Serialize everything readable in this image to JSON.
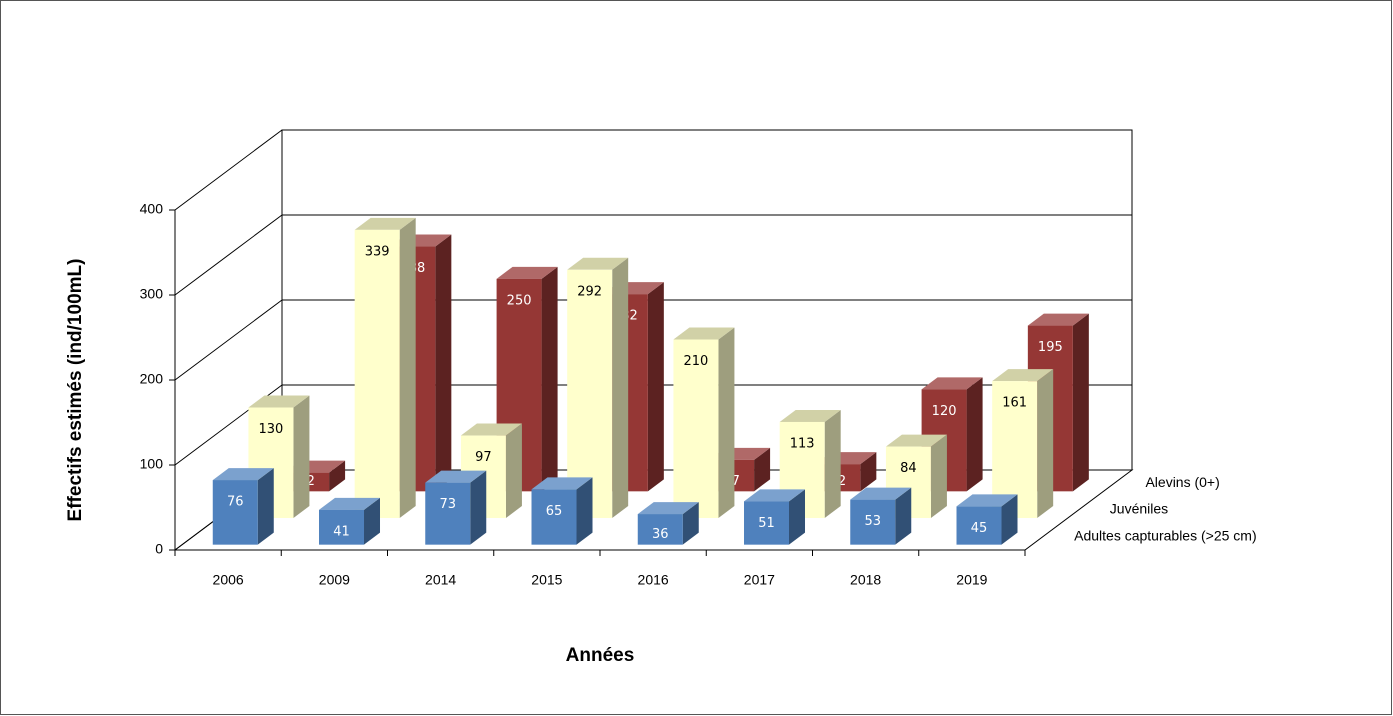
{
  "chart_data": {
    "type": "bar3d",
    "xlabel": "Années",
    "ylabel": "Effectifs estimés (ind/100mL)",
    "categories": [
      "2006",
      "2009",
      "2014",
      "2015",
      "2016",
      "2017",
      "2018",
      "2019"
    ],
    "series": [
      {
        "name": "Adultes capturables (>25 cm)",
        "color": "#4f81bd",
        "values": [
          76,
          41,
          73,
          65,
          36,
          51,
          53,
          45
        ]
      },
      {
        "name": "Juvéniles",
        "color": "#ffffcc",
        "values": [
          130,
          339,
          97,
          292,
          210,
          113,
          84,
          161
        ]
      },
      {
        "name": "Alevins (0+)",
        "color": "#953735",
        "values": [
          22,
          288,
          250,
          232,
          37,
          32,
          120,
          195
        ]
      }
    ],
    "ylim": [
      0,
      400
    ],
    "yticks": [
      0,
      100,
      200,
      300,
      400
    ],
    "grid": true
  }
}
